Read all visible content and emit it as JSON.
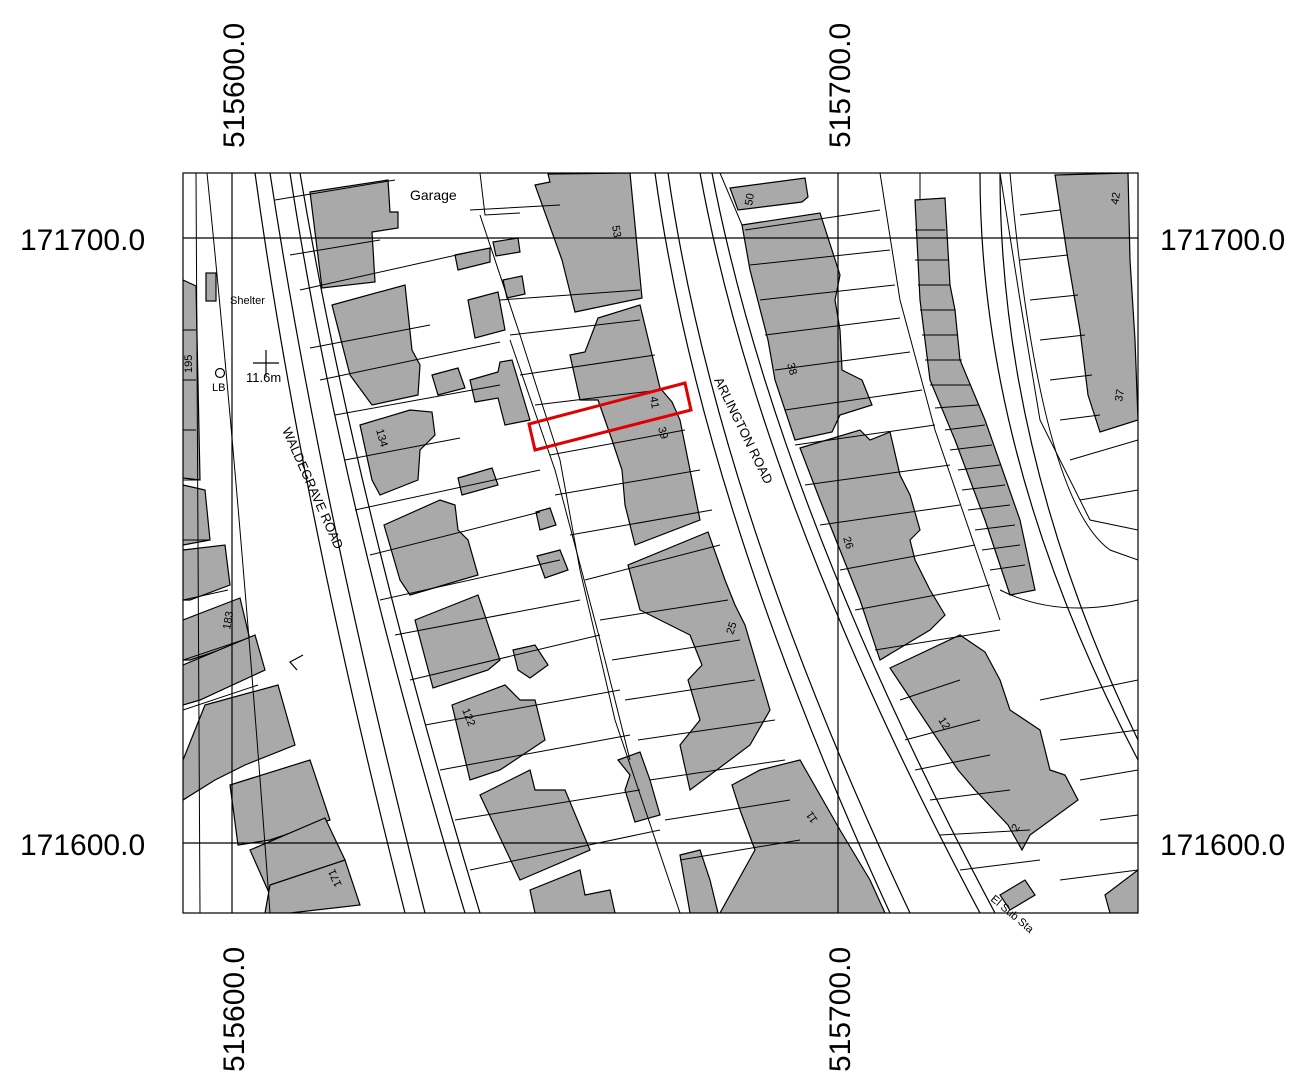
{
  "grid": {
    "easting_labels": [
      "515600.0",
      "515700.0"
    ],
    "northing_labels": [
      "171700.0",
      "171600.0"
    ]
  },
  "labels": {
    "garage": "Garage",
    "shelter": "Shelter",
    "spot_height": "11.6m",
    "lb": "LB",
    "el_sub_sta": "El Sub Sta",
    "waldegrave_road": "WALDEGRAVE ROAD",
    "arlington_road": "ARLINGTON ROAD"
  },
  "house_numbers": {
    "n50": "50",
    "n42": "42",
    "n53": "53",
    "n38": "38",
    "n37": "37",
    "n195": "195",
    "n41": "41",
    "n39": "39",
    "n134": "134",
    "n26": "26",
    "n183": "183",
    "n25": "25",
    "n122": "122",
    "n12": "12",
    "n11": "11",
    "n2": "2",
    "n171": "171"
  },
  "site_boundary": {
    "color": "#e00000"
  },
  "colors": {
    "building": "#a9a9a9",
    "outline": "#000000"
  }
}
